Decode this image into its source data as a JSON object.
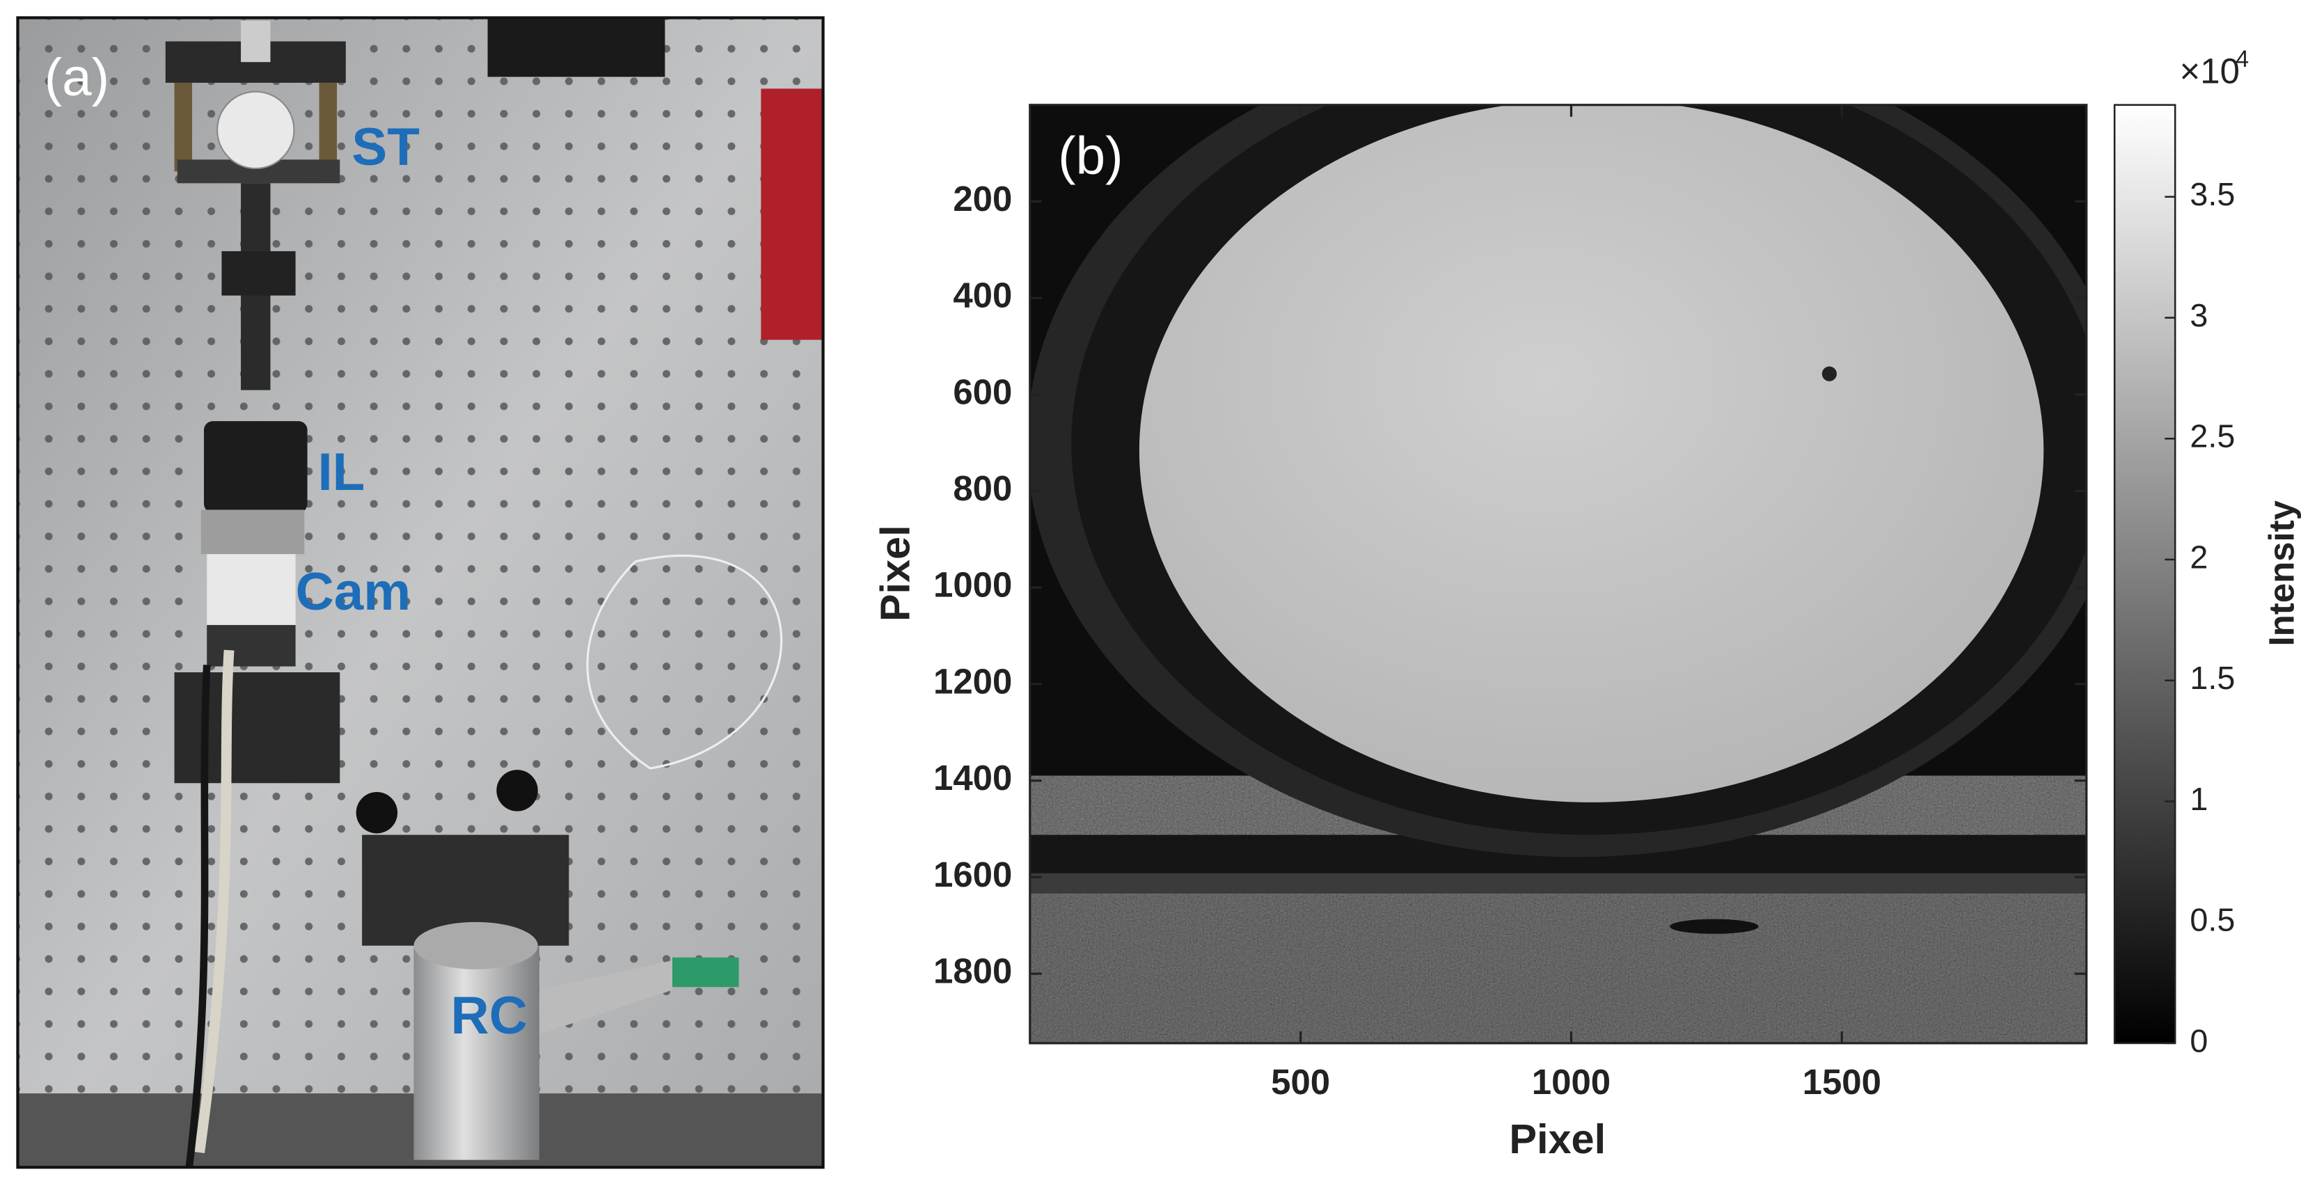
{
  "panel_a": {
    "label": "(a)",
    "annotations": [
      "ST",
      "IL",
      "Cam",
      "RC"
    ]
  },
  "chart_data": {
    "type": "image",
    "label": "(b)",
    "xlabel": "Pixel",
    "ylabel": "Pixel",
    "xlim": [
      0,
      1952
    ],
    "ylim": [
      0,
      1944
    ],
    "y_reversed": true,
    "xticks": [
      500,
      1000,
      1500
    ],
    "yticks": [
      200,
      400,
      600,
      800,
      1000,
      1200,
      1400,
      1600,
      1800
    ],
    "colorbar": {
      "label": "Intensity",
      "multiplier": "×10",
      "exponent": "4",
      "clim": [
        0,
        3.88
      ],
      "ticks": [
        0,
        0.5,
        1,
        1.5,
        2,
        2.5,
        3,
        3.5
      ],
      "colormap": "gray"
    }
  }
}
